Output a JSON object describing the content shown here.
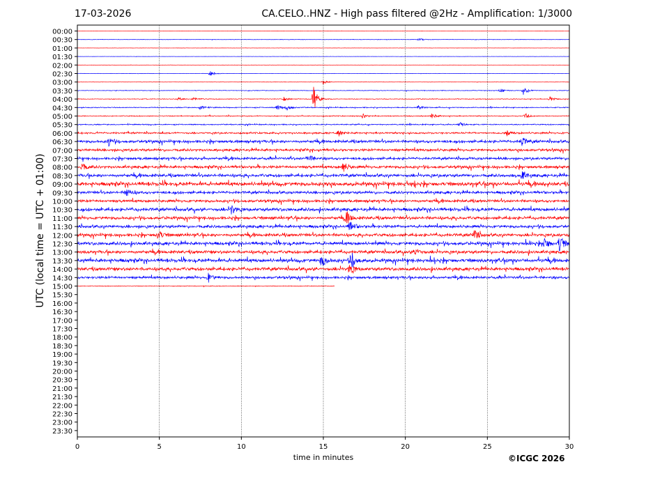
{
  "header": {
    "date": "17-03-2026",
    "title": "CA.CELO..HNZ - High pass filtered @2Hz - Amplification: 1/3000"
  },
  "footer": {
    "copyright": "©ICGC 2026"
  },
  "chart_data": {
    "type": "line",
    "xlabel": "time in minutes",
    "ylabel": "UTC (local time = UTC + 01:00)",
    "xlim": [
      0,
      30
    ],
    "x_ticks": [
      0,
      5,
      10,
      15,
      20,
      25,
      30
    ],
    "grid": "vertical dotted lines at x ticks",
    "row_labels": [
      "00:00",
      "00:30",
      "01:00",
      "01:30",
      "02:00",
      "02:30",
      "03:00",
      "03:30",
      "04:00",
      "04:30",
      "05:00",
      "05:30",
      "06:00",
      "06:30",
      "07:00",
      "07:30",
      "08:00",
      "08:30",
      "09:00",
      "09:30",
      "10:00",
      "10:30",
      "11:00",
      "11:30",
      "12:00",
      "12:30",
      "13:00",
      "13:30",
      "14:00",
      "14:30",
      "15:00",
      "15:30",
      "16:00",
      "16:30",
      "17:00",
      "17:30",
      "18:00",
      "18:30",
      "19:00",
      "19:30",
      "20:00",
      "20:30",
      "21:00",
      "21:30",
      "22:00",
      "22:30",
      "23:00",
      "23:30"
    ],
    "trace_colors": [
      "#ff0000",
      "#0000ff"
    ],
    "trace_end_minutes": [
      30,
      30,
      30,
      30,
      30,
      30,
      30,
      30,
      30,
      30,
      30,
      30,
      30,
      30,
      30,
      30,
      30,
      30,
      30,
      30,
      30,
      30,
      30,
      30,
      30,
      30,
      30,
      30,
      30,
      30,
      15.7
    ],
    "noise_level": [
      0.2,
      0.4,
      0.2,
      0.2,
      0.2,
      0.3,
      0.3,
      0.5,
      0.6,
      0.8,
      0.8,
      0.9,
      1.4,
      2.2,
      2.0,
      2.0,
      2.2,
      2.4,
      3.0,
      2.2,
      2.2,
      2.6,
      2.4,
      2.3,
      2.4,
      2.6,
      2.5,
      2.8,
      2.6,
      2.0,
      0.6
    ],
    "events": [
      {
        "row": 1,
        "minute": 20.8,
        "amp": 2.5
      },
      {
        "row": 5,
        "minute": 8.1,
        "amp": 4
      },
      {
        "row": 6,
        "minute": 15.0,
        "amp": 3
      },
      {
        "row": 7,
        "minute": 25.8,
        "amp": 4
      },
      {
        "row": 7,
        "minute": 27.2,
        "amp": 6
      },
      {
        "row": 8,
        "minute": 6.1,
        "amp": 3
      },
      {
        "row": 8,
        "minute": 7.1,
        "amp": 3
      },
      {
        "row": 8,
        "minute": 12.6,
        "amp": 3
      },
      {
        "row": 8,
        "minute": 14.4,
        "amp": 18
      },
      {
        "row": 8,
        "minute": 28.8,
        "amp": 4
      },
      {
        "row": 9,
        "minute": 7.5,
        "amp": 4
      },
      {
        "row": 9,
        "minute": 12.2,
        "amp": 4
      },
      {
        "row": 9,
        "minute": 12.8,
        "amp": 4
      },
      {
        "row": 9,
        "minute": 20.8,
        "amp": 3
      },
      {
        "row": 10,
        "minute": 17.4,
        "amp": 3
      },
      {
        "row": 10,
        "minute": 21.6,
        "amp": 4
      },
      {
        "row": 10,
        "minute": 27.3,
        "amp": 4
      },
      {
        "row": 11,
        "minute": 23.3,
        "amp": 4
      },
      {
        "row": 12,
        "minute": 15.9,
        "amp": 5
      },
      {
        "row": 12,
        "minute": 26.2,
        "amp": 4
      },
      {
        "row": 13,
        "minute": 1.9,
        "amp": 6
      },
      {
        "row": 13,
        "minute": 27.1,
        "amp": 6
      },
      {
        "row": 15,
        "minute": 14.1,
        "amp": 5
      },
      {
        "row": 16,
        "minute": 0.3,
        "amp": 6
      },
      {
        "row": 16,
        "minute": 16.2,
        "amp": 8
      },
      {
        "row": 17,
        "minute": 27.1,
        "amp": 6
      },
      {
        "row": 19,
        "minute": 3.0,
        "amp": 8
      },
      {
        "row": 21,
        "minute": 9.4,
        "amp": 7
      },
      {
        "row": 22,
        "minute": 16.4,
        "amp": 8
      },
      {
        "row": 23,
        "minute": 16.6,
        "amp": 8
      },
      {
        "row": 24,
        "minute": 4.9,
        "amp": 8
      },
      {
        "row": 24,
        "minute": 24.2,
        "amp": 8
      },
      {
        "row": 25,
        "minute": 28.5,
        "amp": 9
      },
      {
        "row": 25,
        "minute": 29.4,
        "amp": 12
      },
      {
        "row": 26,
        "minute": 20.6,
        "amp": 7
      },
      {
        "row": 27,
        "minute": 14.9,
        "amp": 10
      },
      {
        "row": 27,
        "minute": 16.7,
        "amp": 12
      },
      {
        "row": 28,
        "minute": 16.6,
        "amp": 8
      },
      {
        "row": 29,
        "minute": 8.0,
        "amp": 6
      }
    ]
  }
}
